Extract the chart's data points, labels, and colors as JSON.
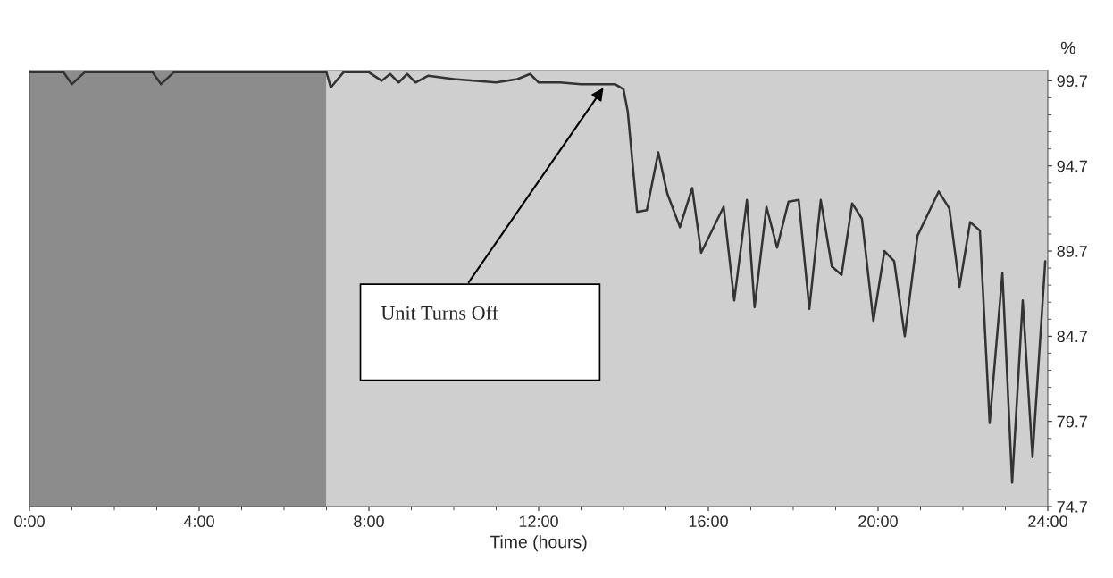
{
  "chart_data": {
    "type": "line",
    "xlabel": "Time (hours)",
    "ylabel": "%",
    "x": [
      0.0,
      0.8,
      1.0,
      1.3,
      2.9,
      3.1,
      3.4,
      7.0,
      7.1,
      7.4,
      8.0,
      8.3,
      8.5,
      8.7,
      8.9,
      9.1,
      9.4,
      10.0,
      11.0,
      11.5,
      11.8,
      12.0,
      12.5,
      13.0,
      13.6,
      13.8,
      14.0,
      14.1,
      14.32,
      14.55,
      14.82,
      15.03,
      15.33,
      15.62,
      15.83,
      16.36,
      16.61,
      16.91,
      17.09,
      17.37,
      17.62,
      17.89,
      18.13,
      18.38,
      18.65,
      18.91,
      19.14,
      19.39,
      19.62,
      19.89,
      20.15,
      20.38,
      20.63,
      20.93,
      21.43,
      21.68,
      21.92,
      22.17,
      22.4,
      22.63,
      22.93,
      23.16,
      23.41,
      23.64,
      23.94
    ],
    "series": [
      {
        "color": "#333333",
        "values": [
          100.2,
          100.2,
          99.5,
          100.2,
          100.2,
          99.5,
          100.2,
          100.2,
          99.3,
          100.2,
          100.2,
          99.7,
          100.1,
          99.6,
          100.1,
          99.6,
          100.0,
          99.8,
          99.6,
          99.8,
          100.1,
          99.6,
          99.6,
          99.5,
          99.5,
          99.5,
          99.2,
          97.9,
          92.0,
          92.1,
          95.5,
          93.1,
          91.1,
          93.4,
          89.6,
          92.3,
          86.8,
          92.7,
          86.4,
          92.3,
          89.9,
          92.6,
          92.7,
          86.3,
          92.7,
          88.8,
          88.3,
          92.5,
          91.6,
          85.6,
          89.7,
          89.1,
          84.7,
          90.6,
          93.2,
          92.2,
          87.6,
          91.4,
          90.9,
          79.6,
          88.4,
          76.1,
          86.8,
          77.6,
          89.1
        ]
      }
    ],
    "xlim": [
      0,
      24
    ],
    "xticks": [
      {
        "value": 0,
        "label": "0:00"
      },
      {
        "value": 4,
        "label": "4:00"
      },
      {
        "value": 8,
        "label": "8:00"
      },
      {
        "value": 12,
        "label": "12:00"
      },
      {
        "value": 16,
        "label": "16:00"
      },
      {
        "value": 20,
        "label": "20:00"
      },
      {
        "value": 24,
        "label": "24:00"
      }
    ],
    "ylim": [
      74.7,
      100.3
    ],
    "yticks": [
      74.7,
      79.7,
      84.7,
      89.7,
      94.7,
      99.7
    ],
    "bands": [
      {
        "axis": "x",
        "from": 0,
        "to": 7,
        "color": "#8c8c8c"
      },
      {
        "axis": "x",
        "from": 7,
        "to": 24,
        "color": "#cfcfcf"
      }
    ],
    "annotations": [
      "Unit Turns Off"
    ],
    "grid": false,
    "legend": false,
    "marker": "none",
    "line_style": "solid"
  }
}
